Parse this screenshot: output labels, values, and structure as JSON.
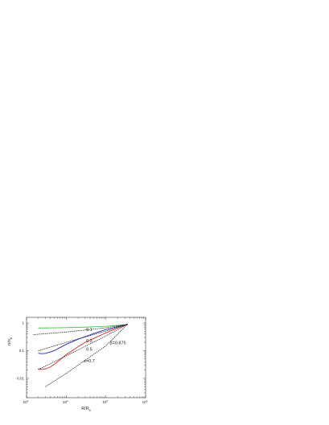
{
  "chart_data": {
    "type": "line",
    "log_x": true,
    "log_y": true,
    "xlim": [
      1,
      1000
    ],
    "ylim": [
      0.002,
      1.6
    ],
    "x_ticks": [
      {
        "value": 1,
        "base": "10",
        "exp": "0"
      },
      {
        "value": 10,
        "base": "10",
        "exp": "1"
      },
      {
        "value": 100,
        "base": "10",
        "exp": "2"
      },
      {
        "value": 1000,
        "base": "10",
        "exp": "3"
      }
    ],
    "y_ticks": [
      {
        "value": 0.01,
        "label": "0.01"
      },
      {
        "value": 0.1,
        "label": "0.1"
      },
      {
        "value": 1,
        "label": "1"
      }
    ],
    "xlabel": {
      "main": "R/R",
      "sub": "b"
    },
    "ylabel": {
      "main": "n/n",
      "sub": "b"
    },
    "annotations": [
      {
        "text": "β=0.875",
        "x": 200,
        "y": 0.17
      },
      {
        "text": "0.1",
        "x": 38,
        "y": 0.52
      },
      {
        "text": "0.3",
        "x": 38,
        "y": 0.2
      },
      {
        "text": "0.5",
        "x": 38,
        "y": 0.099
      },
      {
        "text": "s=0.7",
        "x": 38,
        "y": 0.038
      }
    ],
    "series": [
      {
        "color": "#33cc33",
        "style": "solid",
        "x": [
          2,
          5,
          10,
          30,
          100,
          200,
          300,
          350
        ],
        "y": [
          0.66,
          0.67,
          0.68,
          0.71,
          0.76,
          0.82,
          0.86,
          0.9
        ]
      },
      {
        "color": "#2222cc",
        "style": "solid",
        "x": [
          2,
          2.5,
          3,
          4,
          5,
          7,
          10,
          20,
          50,
          100,
          200,
          300,
          350
        ],
        "y": [
          0.08,
          0.078,
          0.08,
          0.09,
          0.1,
          0.13,
          0.17,
          0.26,
          0.42,
          0.58,
          0.74,
          0.85,
          0.9
        ]
      },
      {
        "color": "#ee2222",
        "style": "solid",
        "x": [
          2,
          2.5,
          3,
          4,
          5,
          7,
          10,
          20,
          30,
          50,
          100,
          200,
          300,
          350
        ],
        "y": [
          0.022,
          0.021,
          0.022,
          0.026,
          0.032,
          0.047,
          0.072,
          0.14,
          0.2,
          0.28,
          0.44,
          0.66,
          0.82,
          0.9
        ]
      },
      {
        "color": "#222222",
        "style": "dotted",
        "x": [
          1.5,
          10,
          100,
          350
        ],
        "y": [
          0.38,
          0.47,
          0.67,
          0.9
        ]
      },
      {
        "color": "#222222",
        "style": "dotted",
        "x": [
          2,
          10,
          100,
          350
        ],
        "y": [
          0.1,
          0.2,
          0.51,
          0.9
        ]
      },
      {
        "color": "#222222",
        "style": "dotted",
        "x": [
          2,
          10,
          100,
          350
        ],
        "y": [
          0.021,
          0.065,
          0.34,
          0.9
        ]
      },
      {
        "color": "#222222",
        "style": "dotted",
        "x": [
          3,
          10,
          100,
          350
        ],
        "y": [
          0.005,
          0.015,
          0.15,
          0.9
        ]
      }
    ]
  }
}
